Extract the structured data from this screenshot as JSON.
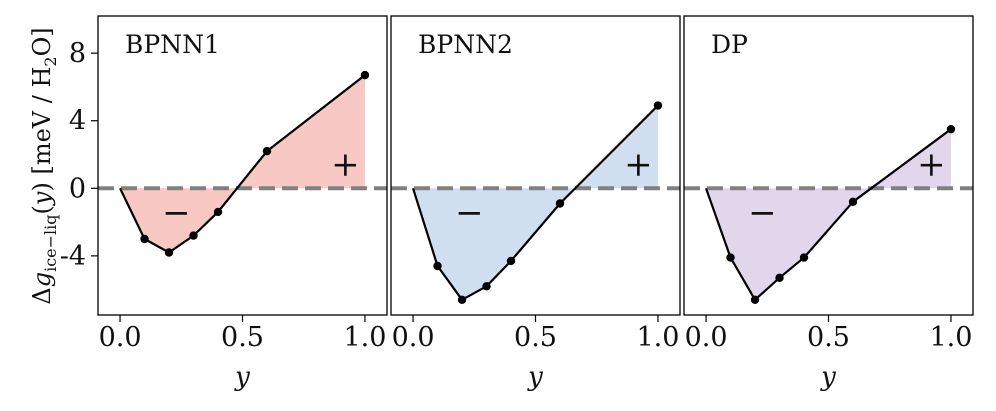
{
  "chart_data": {
    "type": "line",
    "sharey": true,
    "ylabel": "Δg_ice−liq(y) [meV / H₂O]",
    "xlabel": "y",
    "ylim": [
      -7.5,
      10.2
    ],
    "xlim": [
      -0.09,
      1.09
    ],
    "yticks": [
      -4,
      0,
      4,
      8
    ],
    "ytick_labels": [
      "-4",
      "0",
      "4",
      "8"
    ],
    "xticks": [
      0.0,
      0.5,
      1.0
    ],
    "xtick_labels": [
      "0.0",
      "0.5",
      "1.0"
    ],
    "reference_line": {
      "y": 0,
      "style": "dashed",
      "color": "#808080"
    },
    "line_color": "#000000",
    "panels": [
      {
        "title": "BPNN1",
        "fill_color": "#f8c9c4",
        "x": [
          0.0,
          0.1,
          0.2,
          0.3,
          0.4,
          0.6,
          1.0
        ],
        "y": [
          0.0,
          -3.0,
          -3.8,
          -2.8,
          -1.4,
          2.2,
          6.7
        ],
        "minus_label": "−",
        "plus_label": "+"
      },
      {
        "title": "BPNN2",
        "fill_color": "#cfdff0",
        "x": [
          0.0,
          0.1,
          0.2,
          0.3,
          0.4,
          0.6,
          1.0
        ],
        "y": [
          0.0,
          -4.6,
          -6.6,
          -5.8,
          -4.3,
          -0.9,
          4.9
        ],
        "minus_label": "−",
        "plus_label": "+"
      },
      {
        "title": "DP",
        "fill_color": "#e2d6ec",
        "x": [
          0.0,
          0.1,
          0.2,
          0.3,
          0.4,
          0.6,
          1.0
        ],
        "y": [
          0.0,
          -4.1,
          -6.6,
          -5.3,
          -4.1,
          -0.8,
          3.5
        ],
        "minus_label": "−",
        "plus_label": "+"
      }
    ]
  }
}
